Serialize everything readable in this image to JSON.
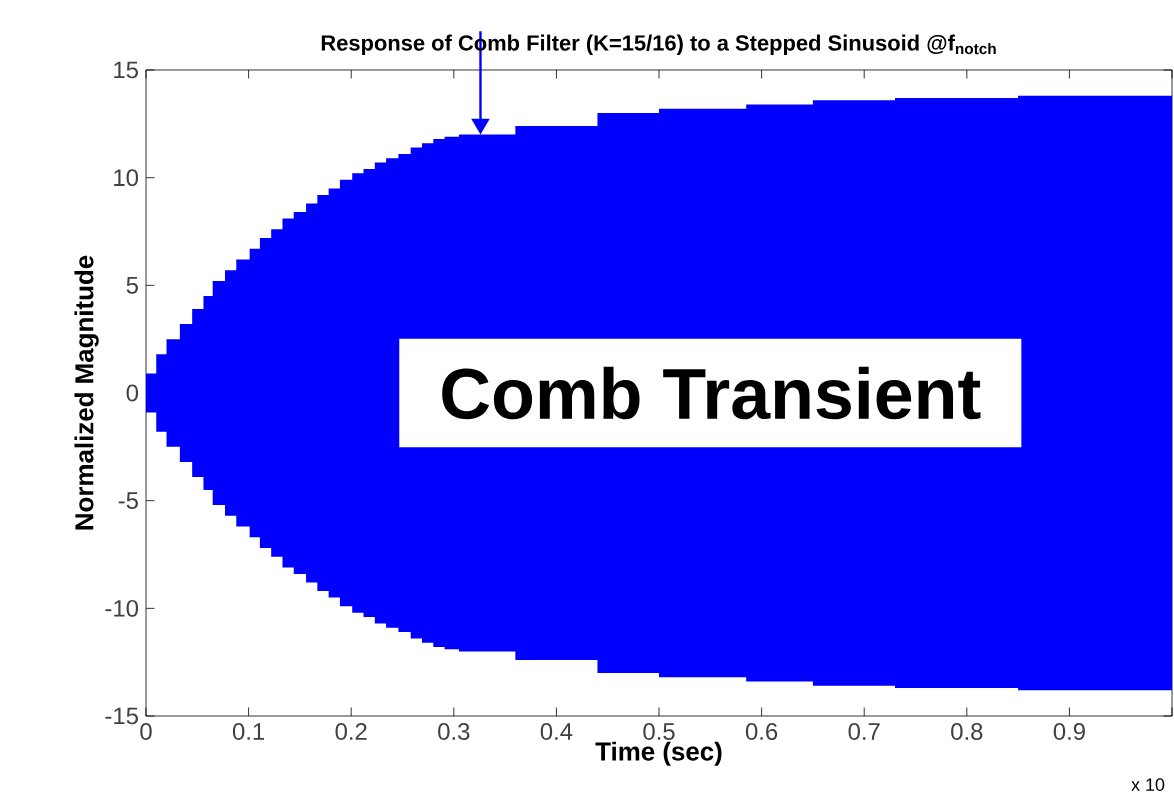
{
  "chart_data": {
    "type": "area",
    "title": "Response of Comb Filter (K=15/16) to a Stepped Sinusoid @f$_{notch}$",
    "xlabel": "Time (sec)",
    "ylabel": "Normalized Magnitude",
    "x": [
      0,
      0.01,
      0.02,
      0.033,
      0.045,
      0.056,
      0.065,
      0.077,
      0.088,
      0.101,
      0.111,
      0.122,
      0.133,
      0.144,
      0.156,
      0.167,
      0.178,
      0.189,
      0.201,
      0.212,
      0.223,
      0.234,
      0.246,
      0.258,
      0.269,
      0.28,
      0.291,
      0.305,
      0.36,
      0.44,
      0.5,
      0.585,
      0.65,
      0.73,
      0.85,
      1.0
    ],
    "series": [
      {
        "color": "#0000ff",
        "values": [
          0.9,
          1.8,
          2.5,
          3.2,
          3.9,
          4.5,
          5.2,
          5.7,
          6.2,
          6.7,
          7.2,
          7.6,
          8.1,
          8.4,
          8.8,
          9.2,
          9.5,
          9.9,
          10.2,
          10.4,
          10.7,
          10.9,
          11.1,
          11.4,
          11.6,
          11.8,
          11.9,
          12.0,
          12.4,
          13.0,
          13.2,
          13.4,
          13.6,
          13.7,
          13.8,
          13.9
        ]
      },
      {
        "color": "#0000ff",
        "values": [
          -0.9,
          -1.8,
          -2.5,
          -3.2,
          -3.9,
          -4.5,
          -5.2,
          -5.7,
          -6.2,
          -6.7,
          -7.2,
          -7.6,
          -8.1,
          -8.4,
          -8.8,
          -9.2,
          -9.5,
          -9.9,
          -10.2,
          -10.4,
          -10.7,
          -10.9,
          -11.1,
          -11.4,
          -11.6,
          -11.8,
          -11.9,
          -12.0,
          -12.4,
          -13.0,
          -13.2,
          -13.4,
          -13.6,
          -13.7,
          -13.8,
          -13.9
        ]
      }
    ],
    "xlim": [
      0,
      1
    ],
    "ylim": [
      -15,
      15
    ],
    "xticks": [
      0,
      0.1,
      0.2,
      0.3,
      0.4,
      0.5,
      0.6,
      0.7,
      0.8,
      0.9,
      {
        "value": 1,
        "label": null
      }
    ],
    "yticks": [
      -15,
      -10,
      -5,
      0,
      5,
      10,
      15
    ],
    "annotations": [
      "Comb Transient",
      "x 10"
    ]
  }
}
